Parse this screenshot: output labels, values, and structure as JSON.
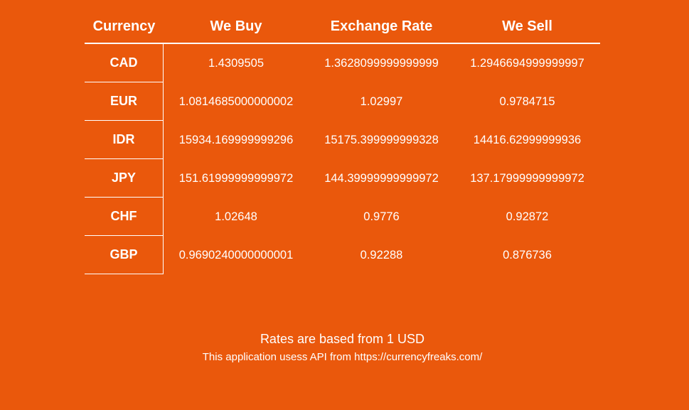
{
  "table": {
    "headers": {
      "currency": "Currency",
      "we_buy": "We Buy",
      "exchange_rate": "Exchange Rate",
      "we_sell": "We Sell"
    },
    "rows": [
      {
        "currency": "CAD",
        "we_buy": "1.4309505",
        "exchange_rate": "1.3628099999999999",
        "we_sell": "1.2946694999999997"
      },
      {
        "currency": "EUR",
        "we_buy": "1.0814685000000002",
        "exchange_rate": "1.02997",
        "we_sell": "0.9784715"
      },
      {
        "currency": "IDR",
        "we_buy": "15934.169999999296",
        "exchange_rate": "15175.399999999328",
        "we_sell": "14416.62999999936"
      },
      {
        "currency": "JPY",
        "we_buy": "151.61999999999972",
        "exchange_rate": "144.39999999999972",
        "we_sell": "137.17999999999972"
      },
      {
        "currency": "CHF",
        "we_buy": "1.02648",
        "exchange_rate": "0.9776",
        "we_sell": "0.92872"
      },
      {
        "currency": "GBP",
        "we_buy": "0.9690240000000001",
        "exchange_rate": "0.92288",
        "we_sell": "0.876736"
      }
    ]
  },
  "footer": {
    "rates_note": "Rates are based from 1 USD",
    "api_note": "This application usess API from https://currencyfreaks.com/"
  },
  "colors": {
    "background": "#EA580C",
    "text": "#FFFFFF"
  }
}
